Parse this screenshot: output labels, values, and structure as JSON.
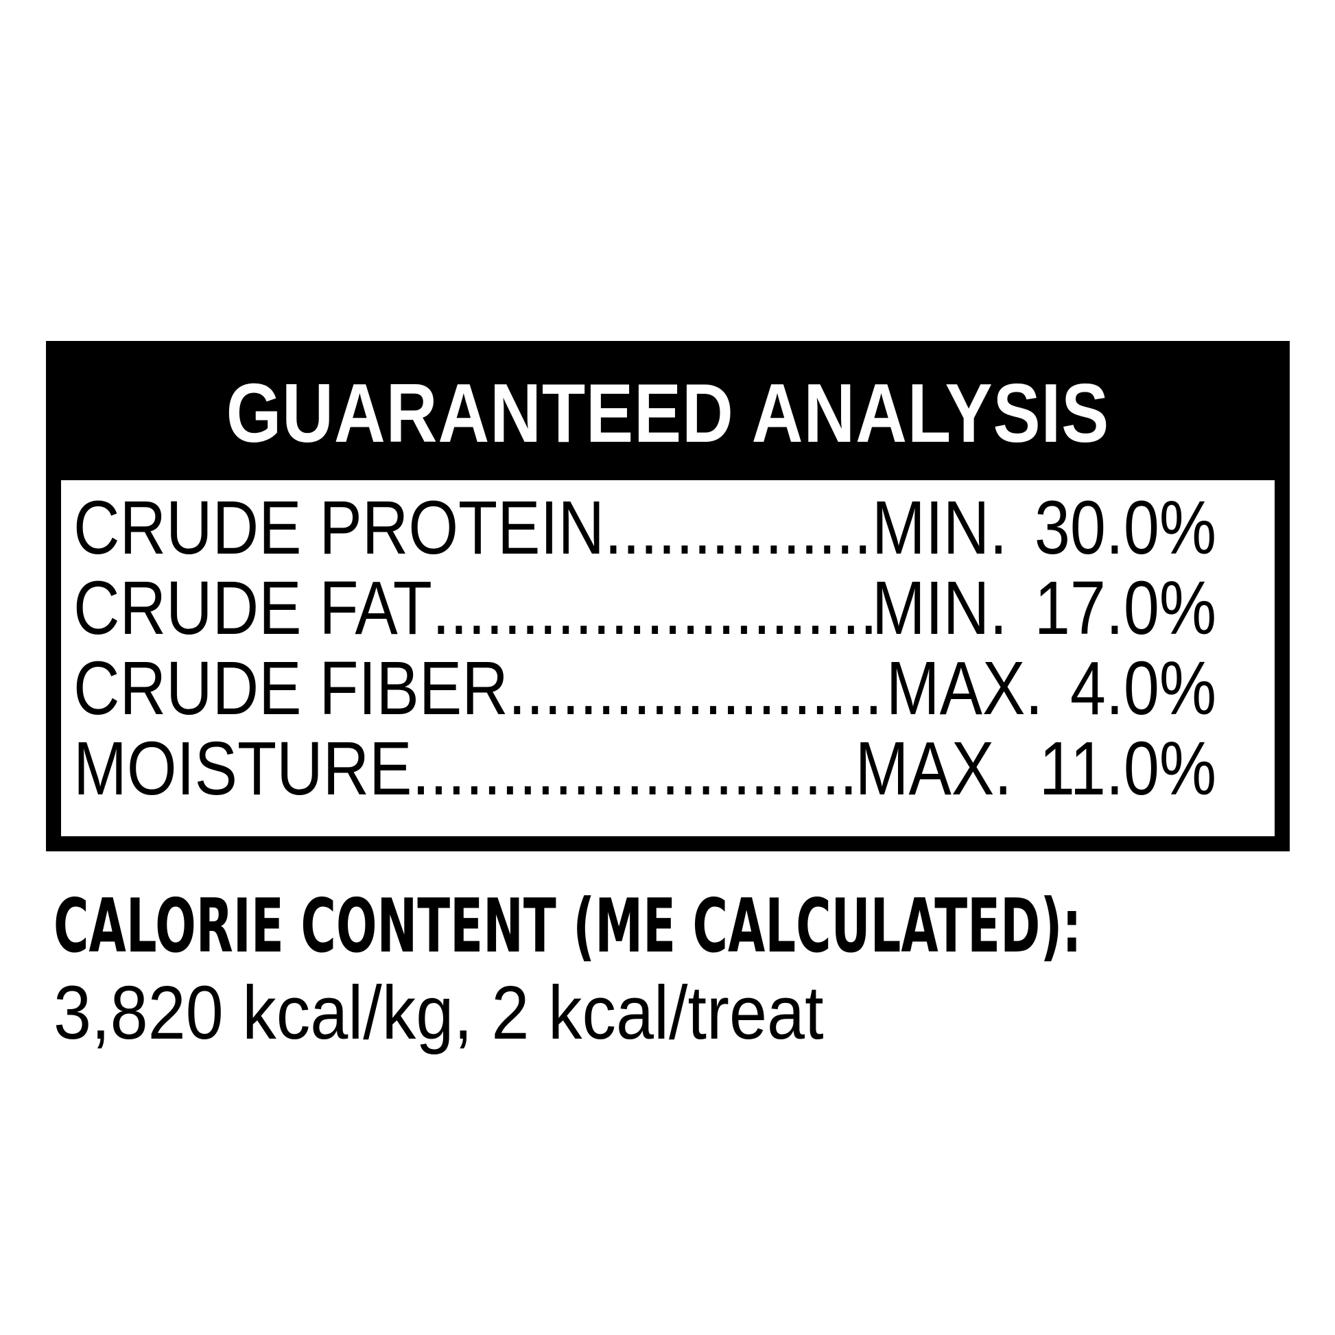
{
  "colors": {
    "ink": "#000000",
    "paper": "#ffffff",
    "header_text": "#ffffff"
  },
  "guaranteed_analysis": {
    "title": "GUARANTEED ANALYSIS",
    "rows": [
      {
        "label": "CRUDE PROTEIN",
        "qualifier": "MIN.",
        "value": "30.0%"
      },
      {
        "label": "CRUDE FAT",
        "qualifier": "MIN.",
        "value": "17.0%"
      },
      {
        "label": "CRUDE FIBER",
        "qualifier": "MAX.",
        "value": "4.0%"
      },
      {
        "label": "MOISTURE",
        "qualifier": "MAX.",
        "value": "11.0%"
      }
    ]
  },
  "calorie_content": {
    "heading": "CALORIE CONTENT (ME CALCULATED):",
    "values_line": "3,820 kcal/kg, 2 kcal/treat"
  }
}
